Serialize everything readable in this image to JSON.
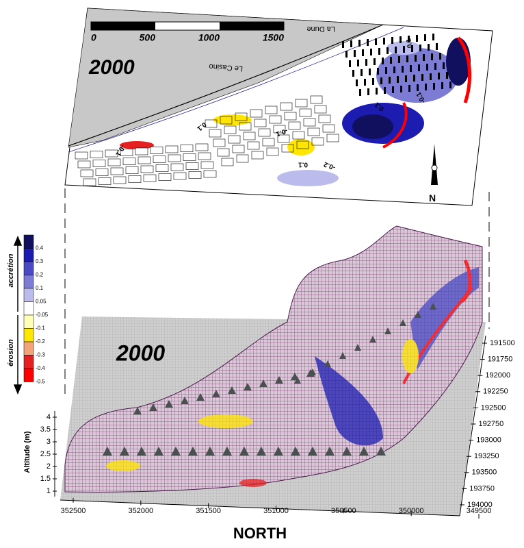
{
  "top_map": {
    "year_label": "2000",
    "scale_bar": {
      "ticks": [
        0,
        500,
        1000,
        1500
      ]
    },
    "place_labels": [
      "La Dune",
      "Le Casino"
    ],
    "contour_labels": [
      -0.1,
      0.1,
      -0.1,
      0.1,
      -0.2,
      0.1,
      -0.1,
      0.1
    ],
    "compass": "N"
  },
  "surface": {
    "year_label": "2000",
    "legend": {
      "levels": [
        0.4,
        0.3,
        0.2,
        0.1,
        0.05,
        -0.05,
        -0.1,
        -0.2,
        -0.3,
        -0.4,
        -0.5
      ],
      "colors": [
        "#10105e",
        "#1c1cb0",
        "#4a4ac4",
        "#7c7cd4",
        "#bcbcec",
        "#ffffff",
        "#ffffb8",
        "#ffe600",
        "#f2a478",
        "#e42020",
        "#ff0000"
      ],
      "accretion_label": "accrétion",
      "erosion_label": "érosion"
    },
    "z_axis": {
      "label": "Altitude (m)",
      "lim": [
        1,
        4
      ],
      "ticks": [
        1,
        1.5,
        2,
        2.5,
        3,
        3.5,
        4
      ]
    },
    "x_axis": {
      "label": "NORTH",
      "lim": [
        352500,
        349500
      ],
      "ticks": [
        352500,
        352000,
        351500,
        351000,
        350500,
        350000,
        349500
      ]
    },
    "y_axis": {
      "lim": [
        191500,
        194000
      ],
      "ticks": [
        191500,
        191750,
        192000,
        192250,
        192500,
        192750,
        193000,
        193250,
        193500,
        193750,
        194000
      ]
    }
  }
}
